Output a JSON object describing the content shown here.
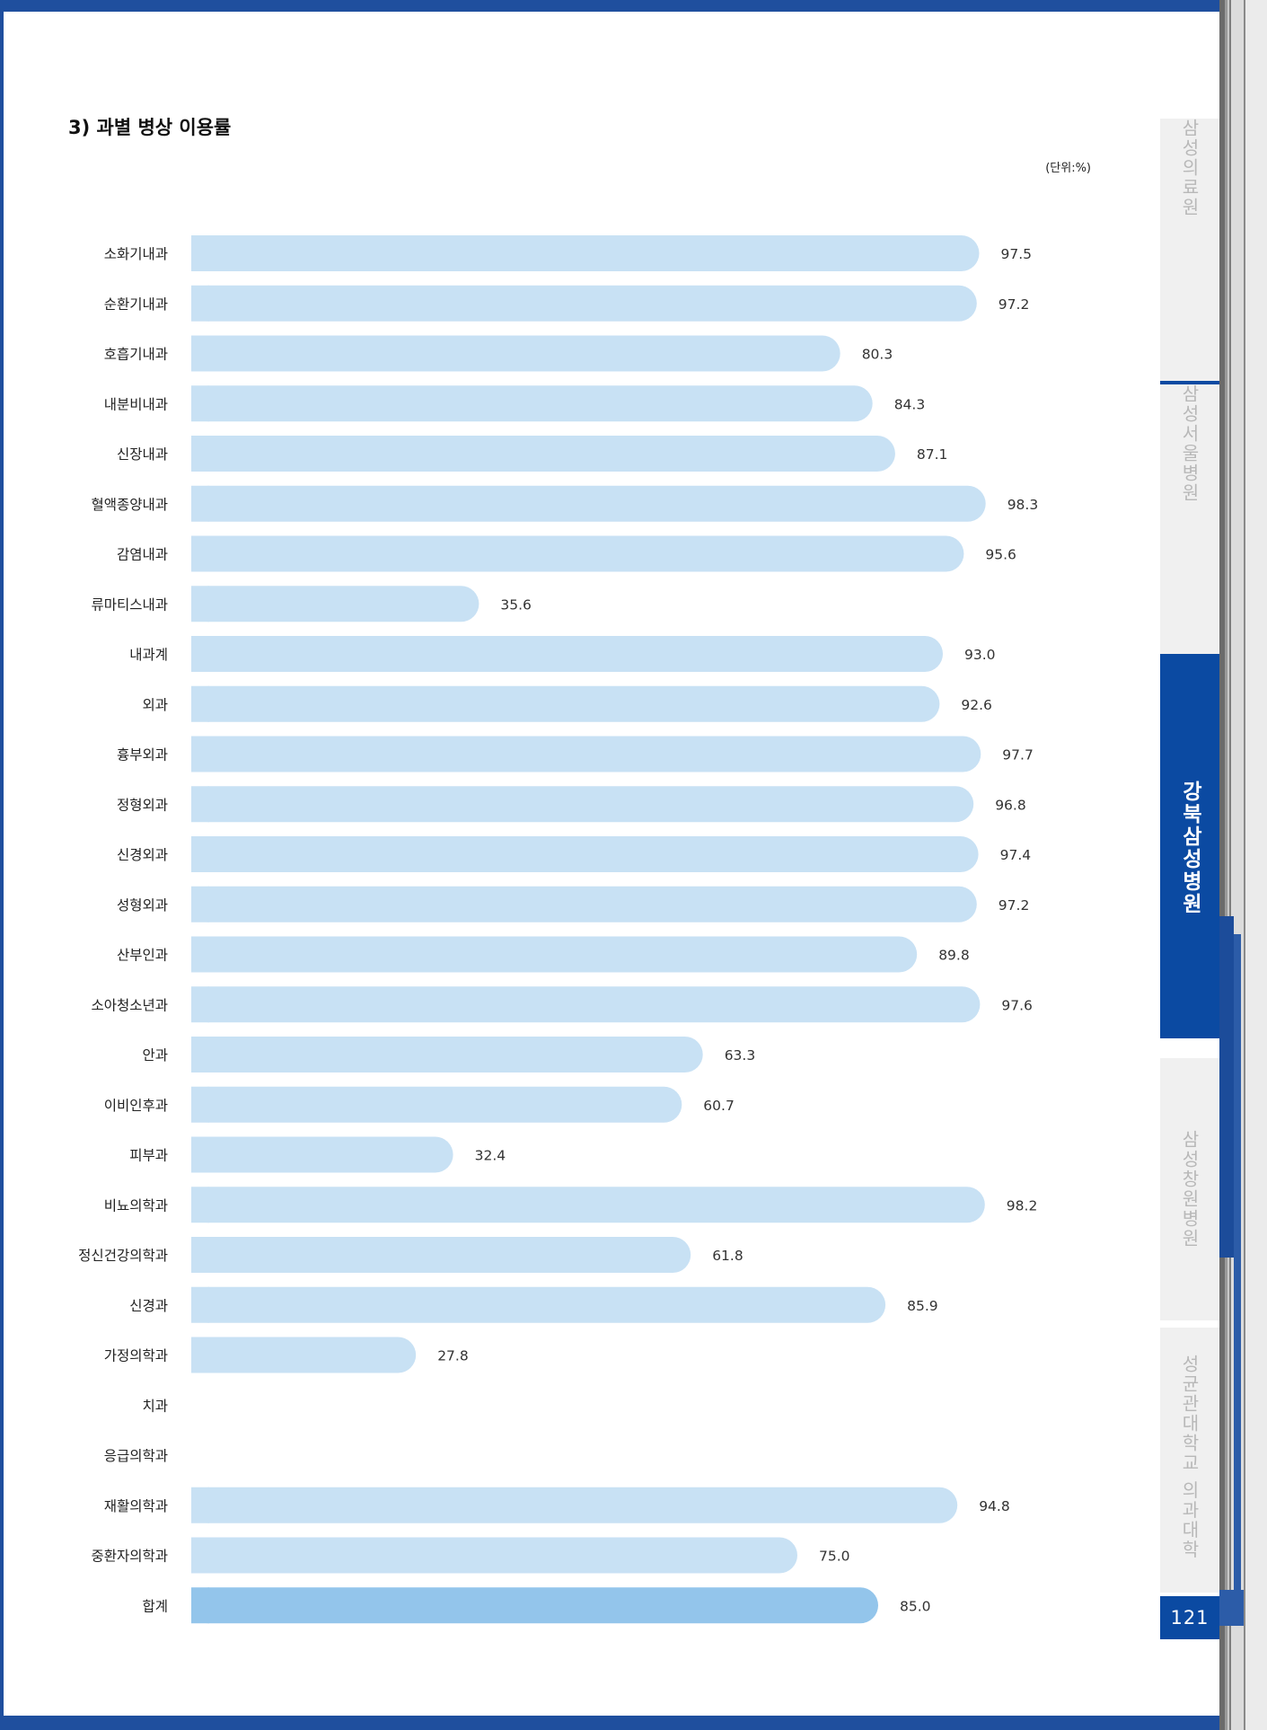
{
  "section": {
    "title": "3) 과별 병상 이용률",
    "unit": "(단위:%)"
  },
  "side_tabs": [
    {
      "label": "삼성의료원",
      "active": false
    },
    {
      "label": "삼성서울병원",
      "active": false
    },
    {
      "label": "강북삼성병원",
      "active": true
    },
    {
      "label": "삼성창원병원",
      "active": false
    },
    {
      "label": "성균관대학교 의과대학",
      "active": false
    }
  ],
  "page_number": "121",
  "colors": {
    "bar": "#c8e1f4",
    "total_bar": "#93c5eb",
    "tab_active": "#0b4aa2",
    "tab_inactive": "#f0f0f0"
  },
  "chart_data": {
    "type": "bar",
    "orientation": "horizontal",
    "categories": [
      "소화기내과",
      "순환기내과",
      "호흡기내과",
      "내분비내과",
      "신장내과",
      "혈액종양내과",
      "감염내과",
      "류마티스내과",
      "내과계",
      "외과",
      "흉부외과",
      "정형외과",
      "신경외과",
      "성형외과",
      "산부인과",
      "소아청소년과",
      "안과",
      "이비인후과",
      "피부과",
      "비뇨의학과",
      "정신건강의학과",
      "신경과",
      "가정의학과",
      "치과",
      "응급의학과",
      "재활의학과",
      "중환자의학과",
      "합계"
    ],
    "values": [
      97.5,
      97.2,
      80.3,
      84.3,
      87.1,
      98.3,
      95.6,
      35.6,
      93.0,
      92.6,
      97.7,
      96.8,
      97.4,
      97.2,
      89.8,
      97.6,
      63.3,
      60.7,
      32.4,
      98.2,
      61.8,
      85.9,
      27.8,
      null,
      null,
      94.8,
      75.0,
      85.0
    ],
    "value_labels": [
      "97.5",
      "97.2",
      "80.3",
      "84.3",
      "87.1",
      "98.3",
      "95.6",
      "35.6",
      "93.0",
      "92.6",
      "97.7",
      "96.8",
      "97.4",
      "97.2",
      "89.8",
      "97.6",
      "63.3",
      "60.7",
      "32.4",
      "98.2",
      "61.8",
      "85.9",
      "27.8",
      "",
      "",
      "94.8",
      "75.0",
      "85.0"
    ],
    "highlight_category": "합계",
    "xlim": [
      0,
      100
    ],
    "grid": false,
    "title": "3) 과별 병상 이용률",
    "unit": "(단위:%)"
  }
}
